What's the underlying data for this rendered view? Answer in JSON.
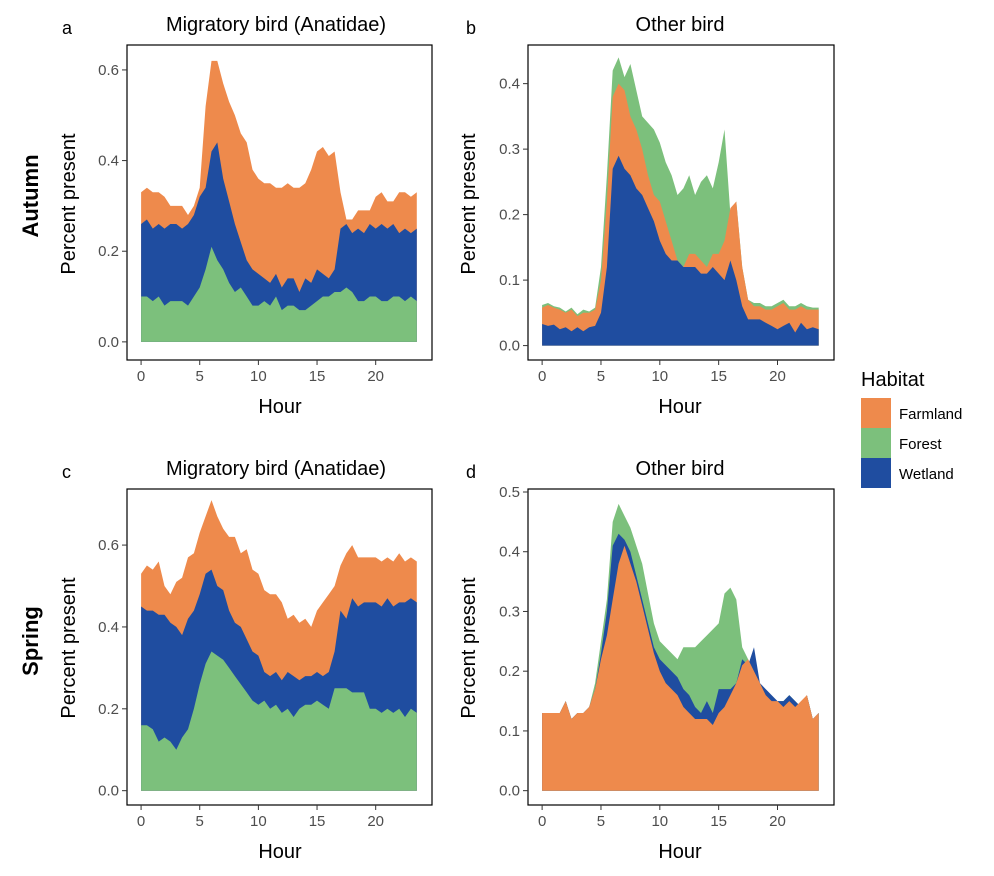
{
  "colors": {
    "Farmland": "#EE8A4C",
    "Forest": "#7CC07C",
    "Wetland": "#1F4DA0"
  },
  "legend": {
    "title": "Habitat",
    "items": [
      "Farmland",
      "Forest",
      "Wetland"
    ]
  },
  "rows": [
    {
      "label": "Autumn"
    },
    {
      "label": "Spring"
    }
  ],
  "chart_data": [
    {
      "id": "a",
      "tag": "a",
      "type": "area",
      "title": "Migratory bird (Anatidae)",
      "xlabel": "Hour",
      "ylabel": "Percent  present",
      "xlim": [
        -1.2,
        24.8
      ],
      "ylim": [
        -0.04,
        0.655
      ],
      "xticks": [
        0,
        5,
        10,
        15,
        20
      ],
      "yticks": [
        0.0,
        0.2,
        0.4,
        0.6
      ],
      "ytick_labels": [
        "0.0",
        "0.2",
        "0.4",
        "0.6"
      ],
      "stack_order": [
        "Forest",
        "Wetland",
        "Farmland"
      ],
      "x": [
        0,
        0.5,
        1,
        1.5,
        2,
        2.5,
        3,
        3.5,
        4,
        4.5,
        5,
        5.5,
        6,
        6.5,
        7,
        7.5,
        8,
        8.5,
        9,
        9.5,
        10,
        10.5,
        11,
        11.5,
        12,
        12.5,
        13,
        13.5,
        14,
        14.5,
        15,
        15.5,
        16,
        16.5,
        17,
        17.5,
        18,
        18.5,
        19,
        19.5,
        20,
        20.5,
        21,
        21.5,
        22,
        22.5,
        23,
        23.5
      ],
      "cumulative_top": {
        "Forest": [
          0.1,
          0.1,
          0.09,
          0.1,
          0.08,
          0.09,
          0.09,
          0.09,
          0.08,
          0.1,
          0.12,
          0.16,
          0.21,
          0.18,
          0.16,
          0.13,
          0.11,
          0.12,
          0.1,
          0.08,
          0.08,
          0.09,
          0.08,
          0.1,
          0.07,
          0.08,
          0.08,
          0.07,
          0.07,
          0.08,
          0.09,
          0.1,
          0.1,
          0.11,
          0.11,
          0.12,
          0.11,
          0.09,
          0.09,
          0.1,
          0.1,
          0.09,
          0.09,
          0.1,
          0.1,
          0.09,
          0.1,
          0.09
        ],
        "Wetland": [
          0.26,
          0.27,
          0.25,
          0.26,
          0.25,
          0.26,
          0.26,
          0.25,
          0.26,
          0.28,
          0.32,
          0.34,
          0.42,
          0.44,
          0.36,
          0.31,
          0.26,
          0.22,
          0.18,
          0.16,
          0.15,
          0.14,
          0.13,
          0.15,
          0.12,
          0.14,
          0.14,
          0.11,
          0.14,
          0.13,
          0.16,
          0.15,
          0.14,
          0.16,
          0.25,
          0.26,
          0.24,
          0.25,
          0.24,
          0.26,
          0.25,
          0.26,
          0.25,
          0.26,
          0.24,
          0.25,
          0.24,
          0.25
        ],
        "Farmland": [
          0.33,
          0.34,
          0.33,
          0.33,
          0.32,
          0.3,
          0.3,
          0.3,
          0.28,
          0.3,
          0.34,
          0.52,
          0.62,
          0.62,
          0.57,
          0.53,
          0.5,
          0.46,
          0.44,
          0.38,
          0.36,
          0.35,
          0.35,
          0.34,
          0.34,
          0.35,
          0.34,
          0.34,
          0.35,
          0.38,
          0.42,
          0.43,
          0.41,
          0.42,
          0.33,
          0.27,
          0.27,
          0.29,
          0.29,
          0.29,
          0.32,
          0.33,
          0.31,
          0.31,
          0.33,
          0.33,
          0.32,
          0.33
        ]
      }
    },
    {
      "id": "b",
      "tag": "b",
      "type": "area",
      "title": "Other bird",
      "xlabel": "Hour",
      "ylabel": "Percent  present",
      "xlim": [
        -1.2,
        24.8
      ],
      "ylim": [
        -0.022,
        0.459
      ],
      "xticks": [
        0,
        5,
        10,
        15,
        20
      ],
      "yticks": [
        0.0,
        0.1,
        0.2,
        0.3,
        0.4
      ],
      "ytick_labels": [
        "0.0",
        "0.1",
        "0.2",
        "0.3",
        "0.4"
      ],
      "stack_order": [
        "Wetland",
        "Farmland",
        "Forest"
      ],
      "x": [
        0,
        0.5,
        1,
        1.5,
        2,
        2.5,
        3,
        3.5,
        4,
        4.5,
        5,
        5.5,
        6,
        6.5,
        7,
        7.5,
        8,
        8.5,
        9,
        9.5,
        10,
        10.5,
        11,
        11.5,
        12,
        12.5,
        13,
        13.5,
        14,
        14.5,
        15,
        15.5,
        16,
        16.5,
        17,
        17.5,
        18,
        18.5,
        19,
        19.5,
        20,
        20.5,
        21,
        21.5,
        22,
        22.5,
        23,
        23.5
      ],
      "cumulative_top": {
        "Wetland": [
          0.033,
          0.03,
          0.032,
          0.025,
          0.028,
          0.022,
          0.028,
          0.022,
          0.028,
          0.03,
          0.05,
          0.12,
          0.27,
          0.29,
          0.27,
          0.26,
          0.24,
          0.23,
          0.21,
          0.19,
          0.16,
          0.14,
          0.13,
          0.13,
          0.12,
          0.12,
          0.12,
          0.11,
          0.11,
          0.12,
          0.11,
          0.1,
          0.13,
          0.1,
          0.06,
          0.04,
          0.04,
          0.04,
          0.035,
          0.03,
          0.025,
          0.03,
          0.035,
          0.02,
          0.035,
          0.025,
          0.028,
          0.025
        ],
        "Farmland": [
          0.058,
          0.062,
          0.058,
          0.055,
          0.05,
          0.055,
          0.045,
          0.05,
          0.05,
          0.055,
          0.1,
          0.22,
          0.38,
          0.4,
          0.39,
          0.35,
          0.33,
          0.3,
          0.26,
          0.23,
          0.22,
          0.19,
          0.16,
          0.13,
          0.12,
          0.14,
          0.14,
          0.13,
          0.12,
          0.14,
          0.14,
          0.16,
          0.21,
          0.22,
          0.12,
          0.07,
          0.06,
          0.06,
          0.055,
          0.055,
          0.06,
          0.065,
          0.055,
          0.055,
          0.06,
          0.055,
          0.055,
          0.055
        ],
        "Forest": [
          0.062,
          0.065,
          0.06,
          0.058,
          0.052,
          0.058,
          0.048,
          0.055,
          0.052,
          0.058,
          0.12,
          0.26,
          0.42,
          0.44,
          0.41,
          0.43,
          0.39,
          0.35,
          0.34,
          0.33,
          0.31,
          0.28,
          0.26,
          0.23,
          0.24,
          0.26,
          0.23,
          0.25,
          0.26,
          0.24,
          0.28,
          0.33,
          0.2,
          0.22,
          0.12,
          0.07,
          0.065,
          0.065,
          0.06,
          0.06,
          0.065,
          0.07,
          0.06,
          0.06,
          0.065,
          0.06,
          0.058,
          0.058
        ]
      }
    },
    {
      "id": "c",
      "tag": "c",
      "type": "area",
      "title": "Migratory bird (Anatidae)",
      "xlabel": "Hour",
      "ylabel": "Percent  present",
      "xlim": [
        -1.2,
        24.8
      ],
      "ylim": [
        -0.035,
        0.737
      ],
      "xticks": [
        0,
        5,
        10,
        15,
        20
      ],
      "yticks": [
        0.0,
        0.2,
        0.4,
        0.6
      ],
      "ytick_labels": [
        "0.0",
        "0.2",
        "0.4",
        "0.6"
      ],
      "stack_order": [
        "Forest",
        "Wetland",
        "Farmland"
      ],
      "x": [
        0,
        0.5,
        1,
        1.5,
        2,
        2.5,
        3,
        3.5,
        4,
        4.5,
        5,
        5.5,
        6,
        6.5,
        7,
        7.5,
        8,
        8.5,
        9,
        9.5,
        10,
        10.5,
        11,
        11.5,
        12,
        12.5,
        13,
        13.5,
        14,
        14.5,
        15,
        15.5,
        16,
        16.5,
        17,
        17.5,
        18,
        18.5,
        19,
        19.5,
        20,
        20.5,
        21,
        21.5,
        22,
        22.5,
        23,
        23.5
      ],
      "cumulative_top": {
        "Forest": [
          0.16,
          0.16,
          0.15,
          0.12,
          0.13,
          0.12,
          0.1,
          0.13,
          0.15,
          0.2,
          0.26,
          0.31,
          0.34,
          0.33,
          0.32,
          0.3,
          0.28,
          0.26,
          0.24,
          0.22,
          0.21,
          0.22,
          0.2,
          0.21,
          0.19,
          0.2,
          0.18,
          0.2,
          0.21,
          0.21,
          0.22,
          0.21,
          0.2,
          0.25,
          0.25,
          0.25,
          0.24,
          0.24,
          0.24,
          0.2,
          0.2,
          0.19,
          0.2,
          0.19,
          0.2,
          0.18,
          0.2,
          0.19
        ],
        "Wetland": [
          0.45,
          0.44,
          0.44,
          0.43,
          0.43,
          0.41,
          0.4,
          0.38,
          0.42,
          0.44,
          0.48,
          0.53,
          0.54,
          0.5,
          0.49,
          0.44,
          0.41,
          0.4,
          0.37,
          0.34,
          0.33,
          0.29,
          0.28,
          0.29,
          0.27,
          0.29,
          0.28,
          0.27,
          0.28,
          0.28,
          0.29,
          0.28,
          0.29,
          0.34,
          0.44,
          0.42,
          0.47,
          0.45,
          0.46,
          0.46,
          0.46,
          0.45,
          0.47,
          0.45,
          0.46,
          0.46,
          0.47,
          0.46
        ],
        "Farmland": [
          0.53,
          0.55,
          0.54,
          0.56,
          0.5,
          0.48,
          0.51,
          0.52,
          0.57,
          0.58,
          0.63,
          0.67,
          0.71,
          0.67,
          0.64,
          0.62,
          0.62,
          0.58,
          0.59,
          0.54,
          0.53,
          0.49,
          0.48,
          0.48,
          0.46,
          0.42,
          0.43,
          0.41,
          0.42,
          0.4,
          0.44,
          0.46,
          0.48,
          0.5,
          0.55,
          0.58,
          0.6,
          0.57,
          0.57,
          0.57,
          0.57,
          0.56,
          0.57,
          0.56,
          0.58,
          0.56,
          0.57,
          0.56
        ]
      }
    },
    {
      "id": "d",
      "tag": "d",
      "type": "area",
      "title": "Other bird",
      "xlabel": "Hour",
      "ylabel": "Percent  present",
      "xlim": [
        -1.2,
        24.8
      ],
      "ylim": [
        -0.024,
        0.505
      ],
      "xticks": [
        0,
        5,
        10,
        15,
        20
      ],
      "yticks": [
        0.0,
        0.1,
        0.2,
        0.3,
        0.4,
        0.5
      ],
      "ytick_labels": [
        "0.0",
        "0.1",
        "0.2",
        "0.3",
        "0.4",
        "0.5"
      ],
      "stack_order": [
        "Farmland",
        "Wetland",
        "Forest"
      ],
      "x": [
        0,
        0.5,
        1,
        1.5,
        2,
        2.5,
        3,
        3.5,
        4,
        4.5,
        5,
        5.5,
        6,
        6.5,
        7,
        7.5,
        8,
        8.5,
        9,
        9.5,
        10,
        10.5,
        11,
        11.5,
        12,
        12.5,
        13,
        13.5,
        14,
        14.5,
        15,
        15.5,
        16,
        16.5,
        17,
        17.5,
        18,
        18.5,
        19,
        19.5,
        20,
        20.5,
        21,
        21.5,
        22,
        22.5,
        23,
        23.5
      ],
      "cumulative_top": {
        "Farmland": [
          0.13,
          0.13,
          0.13,
          0.13,
          0.15,
          0.12,
          0.13,
          0.13,
          0.14,
          0.17,
          0.22,
          0.26,
          0.32,
          0.38,
          0.41,
          0.38,
          0.35,
          0.31,
          0.27,
          0.23,
          0.2,
          0.18,
          0.17,
          0.16,
          0.14,
          0.13,
          0.12,
          0.12,
          0.12,
          0.11,
          0.13,
          0.14,
          0.16,
          0.18,
          0.21,
          0.22,
          0.2,
          0.18,
          0.16,
          0.15,
          0.15,
          0.14,
          0.15,
          0.14,
          0.15,
          0.16,
          0.12,
          0.13
        ],
        "Wetland": [
          0.13,
          0.13,
          0.13,
          0.13,
          0.15,
          0.12,
          0.13,
          0.13,
          0.14,
          0.17,
          0.23,
          0.3,
          0.41,
          0.43,
          0.42,
          0.4,
          0.36,
          0.32,
          0.28,
          0.24,
          0.22,
          0.21,
          0.2,
          0.19,
          0.17,
          0.16,
          0.14,
          0.13,
          0.15,
          0.13,
          0.17,
          0.17,
          0.17,
          0.18,
          0.22,
          0.21,
          0.24,
          0.18,
          0.17,
          0.16,
          0.15,
          0.15,
          0.16,
          0.15,
          0.14,
          0.16,
          0.12,
          0.13
        ],
        "Forest": [
          0.13,
          0.13,
          0.13,
          0.13,
          0.15,
          0.12,
          0.13,
          0.13,
          0.14,
          0.18,
          0.25,
          0.32,
          0.45,
          0.48,
          0.46,
          0.44,
          0.41,
          0.38,
          0.33,
          0.28,
          0.25,
          0.24,
          0.23,
          0.22,
          0.24,
          0.24,
          0.24,
          0.25,
          0.26,
          0.27,
          0.28,
          0.33,
          0.34,
          0.32,
          0.24,
          0.22,
          0.2,
          0.18,
          0.16,
          0.15,
          0.15,
          0.15,
          0.16,
          0.15,
          0.14,
          0.16,
          0.12,
          0.13
        ]
      }
    }
  ]
}
